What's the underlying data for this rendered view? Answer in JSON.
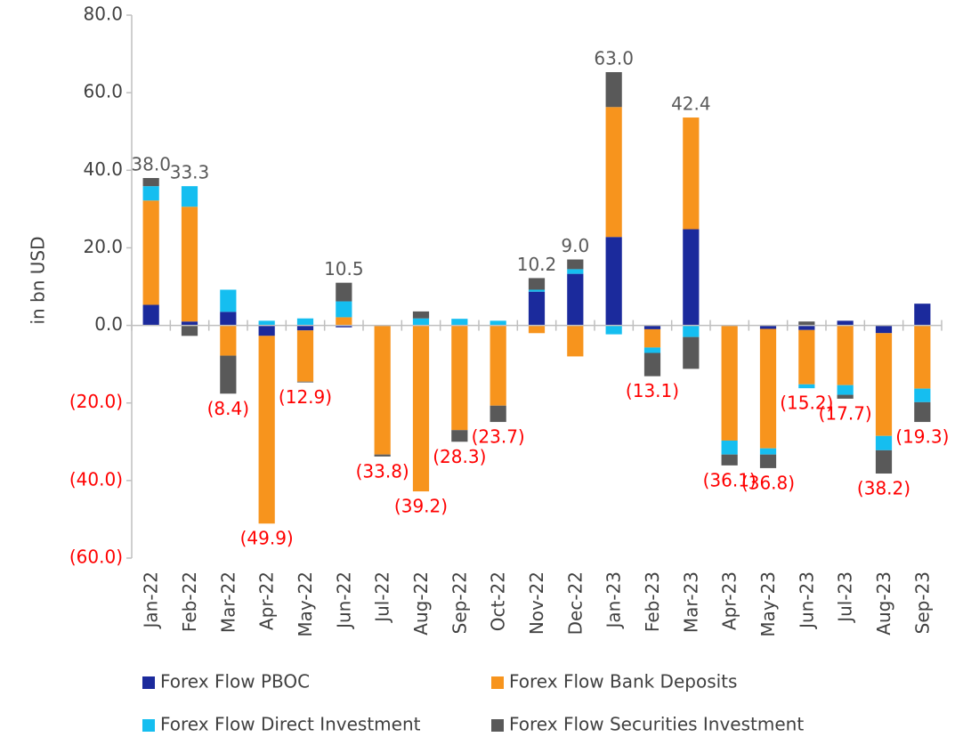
{
  "chart_data": {
    "type": "stacked-bar",
    "y_label": "in bn USD",
    "categories": [
      "Jan-22",
      "Feb-22",
      "Mar-22",
      "Apr-22",
      "May-22",
      "Jun-22",
      "Jul-22",
      "Aug-22",
      "Sep-22",
      "Oct-22",
      "Nov-22",
      "Dec-22",
      "Jan-23",
      "Feb-23",
      "Mar-23",
      "Apr-23",
      "May-23",
      "Jun-23",
      "Jul-23",
      "Aug-23",
      "Sep-23"
    ],
    "series": [
      {
        "name": "Forex Flow PBOC",
        "color": "#1b2a9c",
        "values": [
          5.3,
          1.0,
          3.5,
          -2.7,
          -1.3,
          -0.5,
          0,
          0,
          -0.1,
          0,
          8.7,
          13.3,
          22.8,
          -1.0,
          24.8,
          0,
          -0.9,
          -1.2,
          1.2,
          -2.0,
          5.6
        ]
      },
      {
        "name": "Forex Flow Bank Deposits",
        "color": "#f7941d",
        "values": [
          26.9,
          29.6,
          -7.8,
          -48.4,
          -13.2,
          2.1,
          -33.3,
          -42.8,
          -26.9,
          -20.7,
          -2.0,
          -8.0,
          33.5,
          -4.7,
          28.8,
          -29.7,
          -30.8,
          -14.0,
          -15.4,
          -26.5,
          -16.3
        ]
      },
      {
        "name": "Forex Flow Direct Investment",
        "color": "#15bef0",
        "values": [
          3.7,
          5.3,
          5.7,
          1.2,
          1.8,
          4.1,
          0,
          1.8,
          1.7,
          1.2,
          0.5,
          1.2,
          -2.3,
          -1.4,
          -3.0,
          -3.6,
          -1.6,
          -1.0,
          -2.5,
          -3.7,
          -3.5
        ]
      },
      {
        "name": "Forex Flow Securities Investment",
        "color": "#595959",
        "values": [
          2.1,
          -2.7,
          -9.8,
          0,
          -0.2,
          4.8,
          -0.5,
          1.8,
          -3.0,
          -4.2,
          3.0,
          2.5,
          9.0,
          -6.0,
          -8.2,
          -2.8,
          -3.5,
          1.0,
          -1.0,
          -6.0,
          -5.1
        ]
      }
    ],
    "totals": {
      "values": [
        38.0,
        33.3,
        -8.4,
        -49.9,
        -12.9,
        10.5,
        -33.8,
        -39.2,
        -28.3,
        -23.7,
        10.2,
        9.0,
        63.0,
        -13.1,
        42.4,
        -36.1,
        -36.8,
        -15.2,
        -17.7,
        -38.2,
        -19.3
      ],
      "value_labels": [
        "38.0",
        "33.3",
        "(8.4)",
        "(49.9)",
        "(12.9)",
        "10.5",
        "(33.8)",
        "(39.2)",
        "(28.3)",
        "(23.7)",
        "10.2",
        "9.0",
        "63.0",
        "(13.1)",
        "42.4",
        "(36.1)",
        "(36.8)",
        "(15.2)",
        "(17.7)",
        "(38.2)",
        "(19.3)"
      ]
    },
    "ylim": [
      -60,
      80
    ],
    "yticks": [
      {
        "value": -60,
        "label": "(60.0)"
      },
      {
        "value": -40,
        "label": "(40.0)"
      },
      {
        "value": -20,
        "label": "(20.0)"
      },
      {
        "value": 0,
        "label": "0.0"
      },
      {
        "value": 20,
        "label": "20.0"
      },
      {
        "value": 40,
        "label": "40.0"
      },
      {
        "value": 60,
        "label": "60.0"
      },
      {
        "value": 80,
        "label": "80.0"
      }
    ],
    "negative_label_color": "#ff0000",
    "positive_label_color": "#595959"
  }
}
